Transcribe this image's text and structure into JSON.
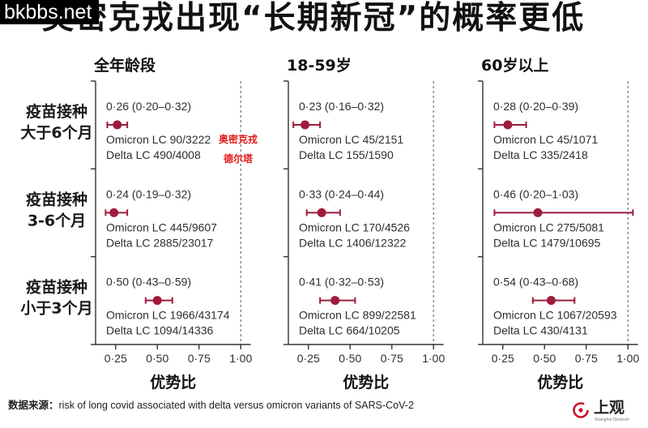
{
  "watermark": "bkbbs.net",
  "footer": {
    "source_label": "数据来源：",
    "source_text": "risk of long covid associated with delta versus omicron variants of SARS-CoV-2"
  },
  "logo": {
    "icon": "shanghai-observer-logo-icon",
    "name": "上观",
    "tagline": "Shanghai Observer"
  },
  "colors": {
    "point": "#9e1b3b",
    "reference_line": "#6f8f8f",
    "axis": "#333333",
    "annotation": "#e31b1b",
    "logo_accent": "#c8102e"
  },
  "chart_data": {
    "type": "scatter",
    "error_bars": true,
    "title": "奥密克戎出现“长期新冠”的概率更低",
    "xlabel": "优势比",
    "xlim": [
      0.13,
      1.06
    ],
    "x_ticks": [
      0.25,
      0.5,
      0.75,
      1.0
    ],
    "x_tick_labels": [
      "0·25",
      "0·50",
      "0·75",
      "1·00"
    ],
    "reference_line_x": 1.0,
    "grid": false,
    "annotations": [
      "奥密克戎",
      "德尔塔"
    ],
    "row_labels": [
      {
        "line1": "疫苗接种",
        "line2": "大于6个月"
      },
      {
        "line1": "疫苗接种",
        "line2": "3-6个月"
      },
      {
        "line1": "疫苗接种",
        "line2": "小于3个月"
      }
    ],
    "panels": [
      {
        "name": "全年龄段",
        "rows": [
          {
            "odds_ratio": 0.26,
            "ci": [
              0.2,
              0.32
            ],
            "label": "0·26 (0·20–0·32)",
            "omicron": "Omicron LC 90/3222",
            "delta": "Delta LC 490/4008"
          },
          {
            "odds_ratio": 0.24,
            "ci": [
              0.19,
              0.32
            ],
            "label": "0·24 (0·19–0·32)",
            "omicron": "Omicron LC 445/9607",
            "delta": "Delta LC 2885/23017"
          },
          {
            "odds_ratio": 0.5,
            "ci": [
              0.43,
              0.59
            ],
            "label": "0·50 (0·43–0·59)",
            "omicron": "Omicron LC 1966/43174",
            "delta": "Delta LC 1094/14336"
          }
        ]
      },
      {
        "name": "18-59岁",
        "rows": [
          {
            "odds_ratio": 0.23,
            "ci": [
              0.16,
              0.32
            ],
            "label": "0·23 (0·16–0·32)",
            "omicron": "Omicron LC 45/2151",
            "delta": "Delta LC 155/1590"
          },
          {
            "odds_ratio": 0.33,
            "ci": [
              0.24,
              0.44
            ],
            "label": "0·33 (0·24–0·44)",
            "omicron": "Omicron LC 170/4526",
            "delta": "Delta LC 1406/12322"
          },
          {
            "odds_ratio": 0.41,
            "ci": [
              0.32,
              0.53
            ],
            "label": "0·41 (0·32–0·53)",
            "omicron": "Omicron LC 899/22581",
            "delta": "Delta LC 664/10205"
          }
        ]
      },
      {
        "name": "60岁以上",
        "rows": [
          {
            "odds_ratio": 0.28,
            "ci": [
              0.2,
              0.39
            ],
            "label": "0·28 (0·20–0·39)",
            "omicron": "Omicron LC 45/1071",
            "delta": "Delta LC 335/2418"
          },
          {
            "odds_ratio": 0.46,
            "ci": [
              0.2,
              1.03
            ],
            "label": "0·46 (0·20–1·03)",
            "omicron": "Omicron LC 275/5081",
            "delta": "Delta LC 1479/10695"
          },
          {
            "odds_ratio": 0.54,
            "ci": [
              0.43,
              0.68
            ],
            "label": "0·54 (0·43–0·68)",
            "omicron": "Omicron LC 1067/20593",
            "delta": "Delta LC 430/4131"
          }
        ]
      }
    ]
  }
}
